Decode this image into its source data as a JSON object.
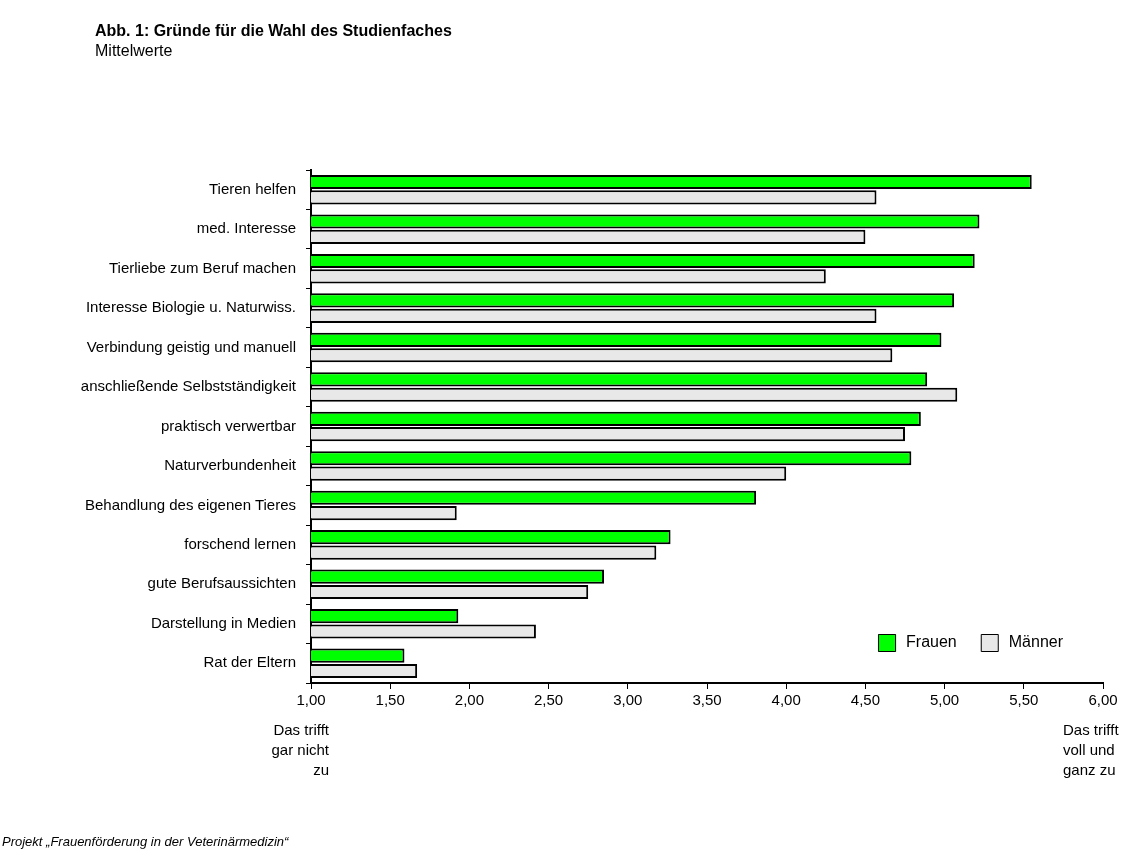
{
  "chart_data": {
    "type": "bar",
    "orientation": "horizontal",
    "title": "Abb. 1: Gründe für die Wahl des Studienfaches",
    "subtitle": "Mittelwerte",
    "categories": [
      "Tieren helfen",
      "med. Interesse",
      "Tierliebe zum Beruf machen",
      "Interesse Biologie u. Naturwiss.",
      "Verbindung geistig und manuell",
      "anschließende Selbstständigkeit",
      "praktisch verwertbar",
      "Naturverbundenheit",
      "Behandlung des eigenen Tieres",
      "forschend lernen",
      "gute Berufsaussichten",
      "Darstellung in Medien",
      "Rat der Eltern"
    ],
    "series": [
      {
        "name": "Frauen",
        "color": "#00ff00",
        "values": [
          5.55,
          5.22,
          5.19,
          5.06,
          4.98,
          4.89,
          4.85,
          4.79,
          3.81,
          3.27,
          2.85,
          1.93,
          1.59
        ]
      },
      {
        "name": "Männer",
        "color": "#e8e8e8",
        "values": [
          4.57,
          4.5,
          4.25,
          4.57,
          4.67,
          5.08,
          4.75,
          4.0,
          1.92,
          3.18,
          2.75,
          2.42,
          1.67
        ]
      }
    ],
    "xlim": [
      1,
      6
    ],
    "xticks": [
      {
        "value": 1,
        "label": "1,00"
      },
      {
        "value": 1.5,
        "label": "1,50"
      },
      {
        "value": 2,
        "label": "2,00"
      },
      {
        "value": 2.5,
        "label": "2,50"
      },
      {
        "value": 3,
        "label": "3,00"
      },
      {
        "value": 3.5,
        "label": "3,50"
      },
      {
        "value": 4,
        "label": "4,00"
      },
      {
        "value": 4.5,
        "label": "4,50"
      },
      {
        "value": 5,
        "label": "5,00"
      },
      {
        "value": 5.5,
        "label": "5,50"
      },
      {
        "value": 6,
        "label": "6,00"
      }
    ],
    "annotations": [
      "Das trifft gar nicht zu",
      "Das trifft voll und ganz zu",
      "Projekt „Frauenförderung in der Veterinärmedizin“"
    ],
    "legend": "bottom right"
  }
}
